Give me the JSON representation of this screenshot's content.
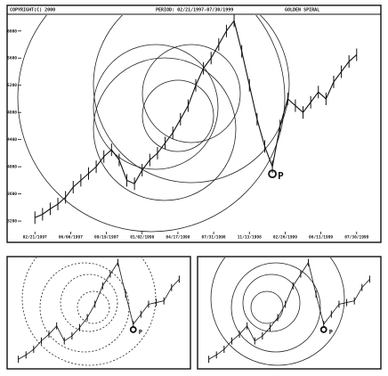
{
  "chart_data": [
    {
      "type": "line",
      "header": [
        "COPYRIGHT(C) 2000",
        "PERIOD: 02/21/1997-07/30/1999",
        "GOLDEN SPIRAL"
      ],
      "x": [
        0,
        3,
        6,
        9,
        12,
        15,
        18,
        21,
        24,
        27,
        30,
        33,
        36,
        39,
        42,
        45,
        48,
        51,
        54,
        57,
        60,
        63,
        66,
        69,
        72,
        75,
        78,
        81,
        84,
        87,
        90,
        93,
        96,
        99,
        102,
        105,
        108,
        111,
        114,
        117,
        120,
        123,
        126
      ],
      "series": [
        {
          "name": "Price",
          "color": "#111111",
          "values": [
            3250,
            3300,
            3380,
            3450,
            3550,
            3700,
            3800,
            3900,
            4000,
            4150,
            4250,
            4100,
            3800,
            3750,
            3950,
            4100,
            4200,
            4350,
            4500,
            4700,
            4900,
            5200,
            5450,
            5600,
            5800,
            6000,
            6150,
            5700,
            5200,
            4700,
            4300,
            4000,
            4600,
            5000,
            4900,
            4800,
            4950,
            5100,
            5000,
            5250,
            5400,
            5550,
            5650
          ]
        }
      ],
      "xlim": [
        -6,
        132
      ],
      "ylim": [
        3070,
        6220
      ],
      "xticks": [
        {
          "value": 0,
          "label": "02/21/1997"
        },
        {
          "value": 14,
          "label": "06/06/1997"
        },
        {
          "value": 28,
          "label": "09/19/1997"
        },
        {
          "value": 42,
          "label": "01/02/1998"
        },
        {
          "value": 56,
          "label": "04/17/1998"
        },
        {
          "value": 70,
          "label": "07/31/1998"
        },
        {
          "value": 84,
          "label": "11/13/1998"
        },
        {
          "value": 98,
          "label": "02/26/1999"
        },
        {
          "value": 112,
          "label": "06/11/1999"
        },
        {
          "value": 126,
          "label": "07/30/1999"
        }
      ],
      "yticks": [
        3200,
        3600,
        4000,
        4400,
        4800,
        5200,
        5600,
        6000
      ],
      "annotations": [
        {
          "text": "P",
          "x": 93,
          "y": 4000
        }
      ]
    },
    {
      "type": "line",
      "x": [
        0,
        6,
        12,
        18,
        24,
        30,
        36,
        42,
        48,
        54,
        60,
        66,
        72,
        78,
        84,
        90,
        96,
        102,
        108,
        114,
        120,
        126
      ],
      "series": [
        {
          "name": "Price",
          "color": "#111111",
          "values": [
            3250,
            3380,
            3550,
            3800,
            4000,
            4250,
            3800,
            3950,
            4200,
            4500,
            4900,
            5450,
            5800,
            6150,
            5200,
            4300,
            4600,
            4900,
            4950,
            5000,
            5400,
            5650
          ]
        }
      ],
      "xlim": [
        -6,
        132
      ],
      "ylim": [
        3070,
        6220
      ],
      "annotations": [
        {
          "text": "P",
          "x": 90,
          "y": 4300
        }
      ]
    },
    {
      "type": "line",
      "x": [
        0,
        6,
        12,
        18,
        24,
        30,
        36,
        42,
        48,
        54,
        60,
        66,
        72,
        78,
        84,
        90,
        96,
        102,
        108,
        114,
        120,
        126
      ],
      "series": [
        {
          "name": "Price",
          "color": "#111111",
          "values": [
            3250,
            3380,
            3550,
            3800,
            4000,
            4250,
            3800,
            3950,
            4200,
            4500,
            4900,
            5450,
            5800,
            6150,
            5200,
            4300,
            4600,
            4900,
            4950,
            5000,
            5400,
            5650
          ]
        }
      ],
      "xlim": [
        -6,
        132
      ],
      "ylim": [
        3070,
        6220
      ],
      "annotations": [
        {
          "text": "P",
          "x": 90,
          "y": 4300
        }
      ]
    }
  ]
}
